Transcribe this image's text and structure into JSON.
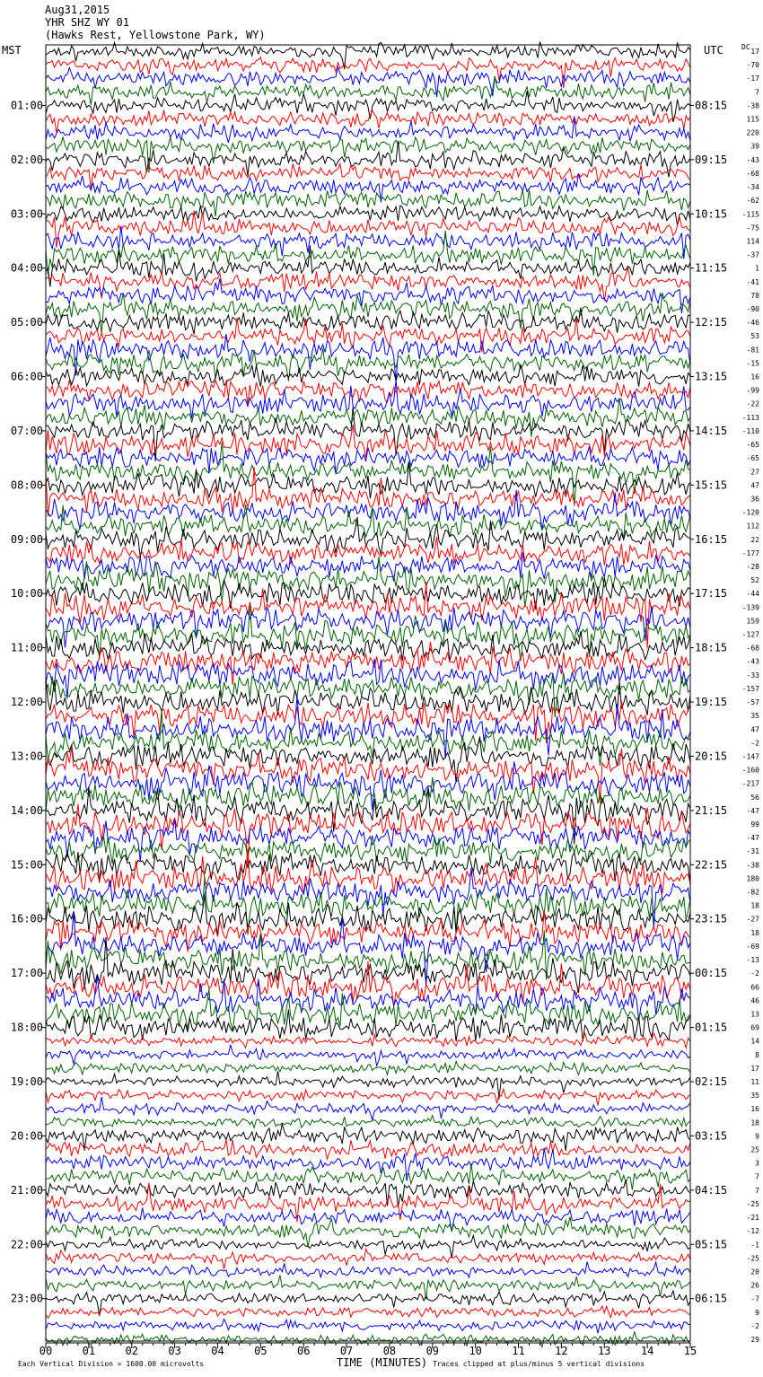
{
  "header": {
    "date": "Aug31,2015",
    "station": "YHR SHZ WY 01",
    "location": "(Hawks Rest, Yellowstone Park, WY)"
  },
  "left_axis_label": "MST",
  "right_axis_label": "UTC",
  "dc_label": "DC",
  "colors": {
    "black": "#000000",
    "red": "#ff0000",
    "blue": "#0000ff",
    "green": "#006400"
  },
  "chart_data": {
    "type": "line",
    "title": "YHR SHZ WY 01",
    "xlabel": "TIME (MINUTES)",
    "xlim": [
      0,
      15
    ],
    "x_ticks": [
      "00",
      "01",
      "02",
      "03",
      "04",
      "05",
      "06",
      "07",
      "08",
      "09",
      "10",
      "11",
      "12",
      "13",
      "14",
      "15"
    ],
    "left_hour_labels": [
      "01:00",
      "02:00",
      "03:00",
      "04:00",
      "05:00",
      "06:00",
      "07:00",
      "08:00",
      "09:00",
      "10:00",
      "11:00",
      "12:00",
      "13:00",
      "14:00",
      "15:00",
      "16:00",
      "17:00",
      "18:00",
      "19:00",
      "20:00",
      "21:00",
      "22:00",
      "23:00"
    ],
    "right_hour_labels": [
      "08:15",
      "09:15",
      "10:15",
      "11:15",
      "12:15",
      "13:15",
      "14:15",
      "15:15",
      "16:15",
      "17:15",
      "18:15",
      "19:15",
      "20:15",
      "21:15",
      "22:15",
      "23:15",
      "00:15",
      "01:15",
      "02:15",
      "03:15",
      "04:15",
      "05:15",
      "06:15"
    ],
    "trace_color_cycle": [
      "black",
      "red",
      "blue",
      "green"
    ],
    "dc_offsets": [
      17,
      -70,
      -17,
      7,
      -38,
      115,
      220,
      39,
      -43,
      -68,
      -34,
      -62,
      -115,
      -75,
      114,
      -37,
      1,
      -41,
      78,
      -90,
      -46,
      53,
      -81,
      -15,
      16,
      -99,
      -22,
      -113,
      -110,
      -65,
      -65,
      27,
      47,
      36,
      -120,
      112,
      22,
      -177,
      -28,
      52,
      -44,
      -139,
      159,
      -127,
      -68,
      -43,
      -33,
      -157,
      -57,
      35,
      47,
      -2,
      -147,
      -160,
      -217,
      56,
      -47,
      99,
      -47,
      -31,
      -38,
      180,
      -82,
      18,
      -27,
      18,
      -69,
      -13,
      -2,
      66,
      46,
      13,
      69,
      14,
      8,
      17,
      11,
      35,
      16,
      18,
      9,
      25,
      3,
      7,
      7,
      -25,
      -21,
      -12,
      -1,
      -25,
      20,
      26,
      -7,
      9,
      -2,
      29
    ],
    "footer_left": "Each Vertical Division = 1600.00 microvolts",
    "footer_right": "Traces clipped at plus/minus 5 vertical divisions"
  }
}
